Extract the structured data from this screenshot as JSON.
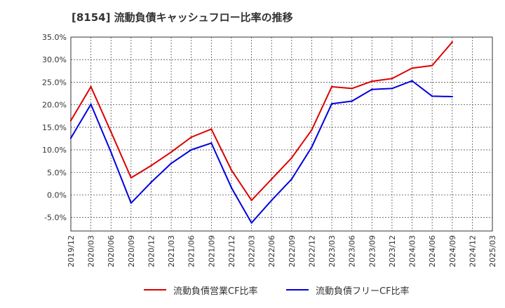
{
  "chart_data": {
    "type": "line",
    "title": "[8154]  流動負債キャッシュフロー比率の推移",
    "xlabel": "",
    "ylabel": "",
    "ylim": [
      -8,
      35
    ],
    "y_ticks": [
      "35.0%",
      "30.0%",
      "25.0%",
      "20.0%",
      "15.0%",
      "10.0%",
      "5.0%",
      "0.0%",
      "-5.0%"
    ],
    "y_tick_values": [
      35,
      30,
      25,
      20,
      15,
      10,
      5,
      0,
      -5
    ],
    "x_ticks": [
      "2019/12",
      "2020/03",
      "2020/06",
      "2020/09",
      "2020/12",
      "2021/03",
      "2021/06",
      "2021/09",
      "2021/12",
      "2022/03",
      "2022/06",
      "2022/09",
      "2022/12",
      "2023/03",
      "2023/06",
      "2023/09",
      "2023/12",
      "2024/03",
      "2024/06",
      "2024/09",
      "2024/12",
      "2025/03"
    ],
    "grid": true,
    "legend_position": "bottom",
    "series": [
      {
        "name": "流動負債営業CF比率",
        "color": "#dd0000",
        "values": [
          16.5,
          24.0,
          14.0,
          3.8,
          6.5,
          9.5,
          12.8,
          14.6,
          5.5,
          -1.2,
          3.5,
          8.2,
          14.4,
          24.0,
          23.6,
          25.2,
          25.8,
          28.1,
          28.7,
          33.9
        ]
      },
      {
        "name": "流動負債フリーCF比率",
        "color": "#0000dd",
        "values": [
          12.6,
          20.1,
          9.5,
          -1.8,
          2.8,
          7.0,
          10.0,
          11.5,
          1.6,
          -6.2,
          -1.2,
          3.5,
          10.6,
          20.2,
          20.8,
          23.4,
          23.6,
          25.3,
          21.9,
          21.8
        ]
      }
    ]
  }
}
